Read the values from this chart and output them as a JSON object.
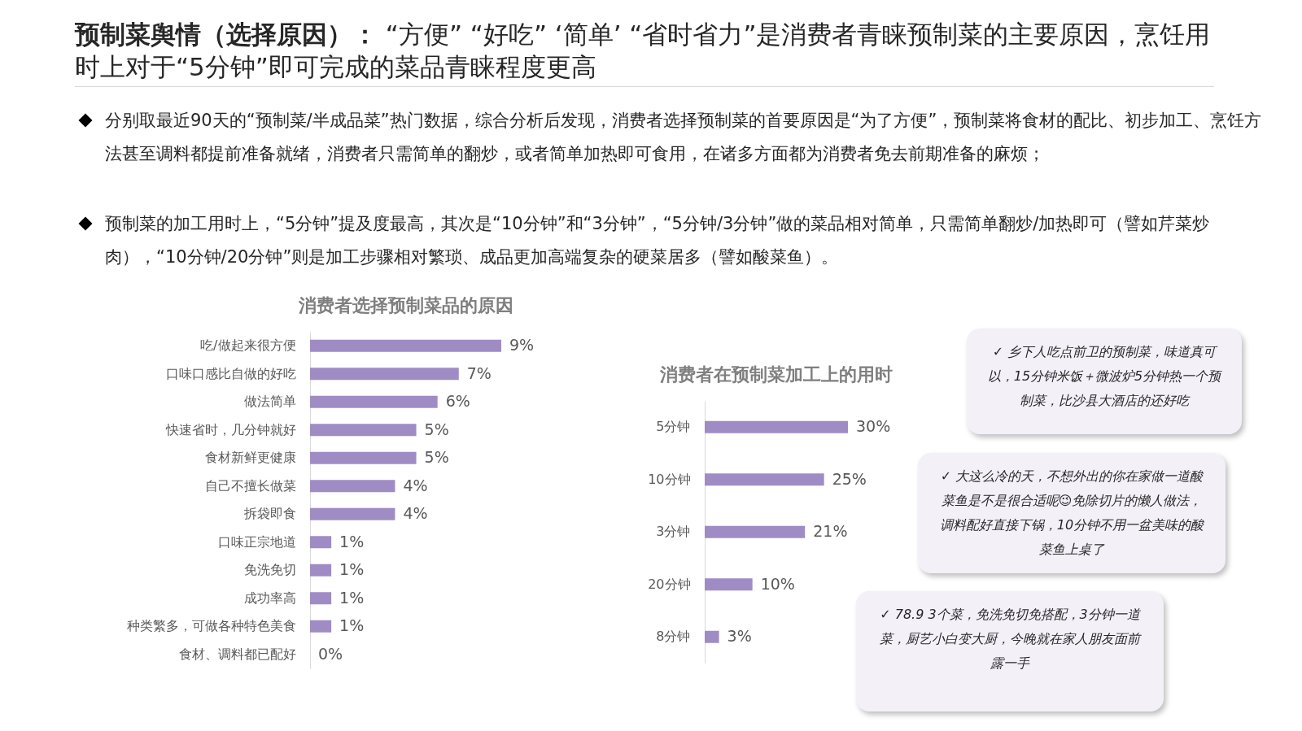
{
  "chart_data": [
    {
      "type": "other",
      "title": "预制菜舆情（选择原因）：",
      "subtitle": "“方便” “好吃” ‘简单’ “省时省力”是消费者青睐预制菜的主要原因，烹饪用时上对于“5分钟”即可完成的菜品青睐程度更高",
      "annotations": [
        "分别取最近90天的“预制菜/半成品菜”热门数据，综合分析后发现，消费者选择预制菜的首要原因是“为了方便”，预制菜将食材的配比、初步加工、烹饪方法甚至调料都提前准备就绪，消费者只需简单的翻炒，或者简单加热即可食用，在诸多方面都为消费者免去前期准备的麻烦；",
        "预制菜的加工用时上，“5分钟”提及度最高，其次是“10分钟”和“3分钟”，“5分钟/3分钟”做的菜品相对简单，只需简单翻炒/加热即可（譬如芹菜炒肉），“10分钟/20分钟”则是加工步骤相对繁琐、成品更加高端复杂的硬菜居多（譬如酸菜鱼）。"
      ]
    },
    {
      "type": "bar",
      "orientation": "horizontal",
      "title": "消费者选择预制菜品的原因",
      "color": "#a08cc4",
      "categories": [
        "吃/做起来很方便",
        "口味口感比自做的好吃",
        "做法简单",
        "快速省时，几分钟就好",
        "食材新鲜更健康",
        "自己不擅长做菜",
        "拆袋即食",
        "口味正宗地道",
        "免洗免切",
        "成功率高",
        "种类繁多，可做各种特色美食",
        "食材、调料都已配好"
      ],
      "values": [
        9,
        7,
        6,
        5,
        5,
        4,
        4,
        1,
        1,
        1,
        1,
        0
      ],
      "value_labels": [
        "9%",
        "7%",
        "6%",
        "5%",
        "5%",
        "4%",
        "4%",
        "1%",
        "1%",
        "1%",
        "1%",
        "0%"
      ]
    },
    {
      "type": "bar",
      "orientation": "horizontal",
      "title": "消费者在预制菜加工上的用时",
      "color": "#a08cc4",
      "categories": [
        "5分钟",
        "10分钟",
        "3分钟",
        "20分钟",
        "8分钟"
      ],
      "values": [
        30,
        25,
        21,
        10,
        3
      ],
      "value_labels": [
        "30%",
        "25%",
        "21%",
        "10%",
        "3%"
      ]
    },
    {
      "type": "other",
      "annotations": [
        "✓ 乡下人吃点前卫的预制菜，味道真可以，15分钟米饭＋微波炉5分钟热一个预制菜，比沙县大酒店的还好吃",
        "✓ 大这么冷的天，不想外出的你在家做一道酸菜鱼是不是很合适呢😉免除切片的懒人做法，调料配好直接下锅，10分钟不用一盆美味的酸菜鱼上桌了",
        "✓ 78.9 3个菜，免洗免切免搭配，3分钟一道菜，厨艺小白变大厨，今晚就在家人朋友面前露一手"
      ]
    }
  ]
}
